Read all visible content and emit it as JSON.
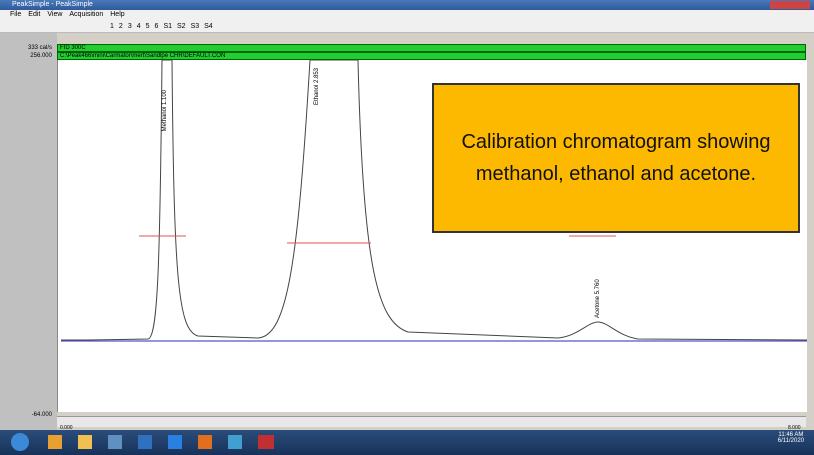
{
  "window": {
    "title": "PeakSimple - PeakSimple"
  },
  "menu": [
    "File",
    "Edit",
    "View",
    "Acquisition",
    "Help"
  ],
  "toolbar": {
    "channels": [
      "1",
      "2",
      "3",
      "4",
      "5",
      "6"
    ],
    "sets": [
      "S1",
      "S2",
      "S3",
      "S4"
    ]
  },
  "header": {
    "scale": "333 cal/s",
    "detector": "FID 300C",
    "ymax": "256.000",
    "path": "C:\\Peak466\\mini\\Carmator\\mert\\Sandlpe CHR\\DEFAULT.CON"
  },
  "axis": {
    "ymin": "-64.000",
    "xmin": "0.000",
    "xmax": "8.000"
  },
  "peaks": [
    "Methanol 1.100",
    "Ethanol 2.853",
    "Acetone 5.760"
  ],
  "callout": "Calibration chromatogram showing methanol, ethanol and acetone.",
  "taskbar": {
    "time": "11:46 AM",
    "date": "6/11/2020"
  }
}
